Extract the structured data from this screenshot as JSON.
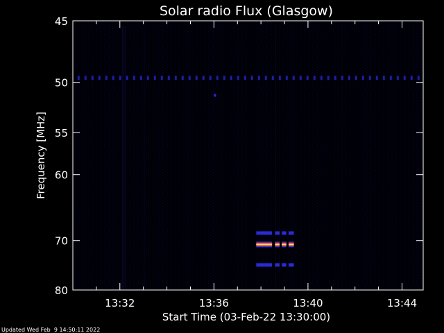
{
  "chart_data": {
    "type": "heatmap",
    "title": "Solar radio Flux (Glasgow)",
    "xlabel": "Start Time (03-Feb-22 13:30:00)",
    "ylabel": "Frequency [MHz]",
    "x_ticks": [
      "13:32",
      "13:36",
      "13:40",
      "13:44"
    ],
    "x_tick_minutes": [
      2,
      6,
      10,
      14
    ],
    "xlim_minutes": [
      0,
      14.9
    ],
    "y_ticks": [
      45,
      50,
      55,
      60,
      70,
      80
    ],
    "ylim": [
      45,
      80
    ],
    "y_scale": "reciprocal",
    "background": "#000000",
    "features": [
      {
        "name": "band",
        "freq_mhz": 49.6,
        "start_min": 0.2,
        "end_min": 14.9,
        "intensity": "low"
      },
      {
        "name": "burst",
        "freq_mhz": 68.7,
        "start_min": 7.8,
        "end_min": 9.4,
        "intensity": "medium"
      },
      {
        "name": "burst",
        "freq_mhz": 70.7,
        "start_min": 7.8,
        "end_min": 9.4,
        "intensity": "high"
      },
      {
        "name": "burst",
        "freq_mhz": 74.6,
        "start_min": 7.8,
        "end_min": 9.4,
        "intensity": "medium"
      }
    ]
  },
  "footer": "Updated Wed Feb  9 14:50:11 2022"
}
